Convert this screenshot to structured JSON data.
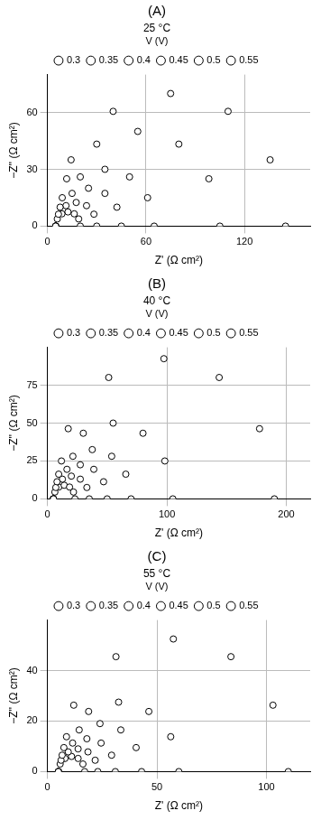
{
  "chart_data": [
    {
      "type": "scatter",
      "title": "(A)",
      "subtitle": "25 °C",
      "x_label": "Z' (Ω cm²)",
      "y_label": "−Z'' (Ω cm²)",
      "legend_title": "V (V)",
      "xlim": [
        0,
        160
      ],
      "xticks": [
        0,
        60,
        120
      ],
      "ylim": [
        0,
        80
      ],
      "yticks": [
        0,
        30,
        60
      ],
      "grid": true,
      "legend": "top",
      "color": "#000000",
      "marker": "circle",
      "series": [
        {
          "name": "0.3",
          "x": [
            5,
            14.4,
            40,
            75,
            110,
            135.6,
            145
          ],
          "values": [
            0,
            35,
            60.6,
            70,
            60.6,
            35,
            0
          ]
        },
        {
          "name": "0.35",
          "x": [
            5,
            11.7,
            30,
            55,
            80,
            98.3,
            105
          ],
          "values": [
            0,
            25,
            43.3,
            50,
            43.3,
            25,
            0
          ]
        },
        {
          "name": "0.4",
          "x": [
            5,
            9,
            20,
            35,
            50,
            61,
            65
          ],
          "values": [
            0,
            15,
            26,
            30,
            26,
            15,
            0
          ]
        },
        {
          "name": "0.45",
          "x": [
            5,
            7.7,
            15,
            25,
            35,
            42.3,
            45
          ],
          "values": [
            0,
            10,
            17.3,
            20,
            17.3,
            10,
            0
          ]
        },
        {
          "name": "0.5",
          "x": [
            5,
            6.7,
            11.3,
            17.5,
            23.8,
            28.3,
            30
          ],
          "values": [
            0,
            6.3,
            10.8,
            12.5,
            10.8,
            6.3,
            0
          ]
        },
        {
          "name": "0.55",
          "x": [
            5,
            6,
            8.8,
            12.5,
            16.3,
            19,
            20
          ],
          "values": [
            0,
            3.8,
            6.5,
            7.5,
            6.5,
            3.8,
            0
          ]
        }
      ]
    },
    {
      "type": "scatter",
      "title": "(B)",
      "subtitle": "40 °C",
      "x_label": "Z' (Ω cm²)",
      "y_label": "−Z'' (Ω cm²)",
      "legend_title": "V (V)",
      "xlim": [
        0,
        220
      ],
      "xticks": [
        0,
        100,
        200
      ],
      "ylim": [
        0,
        100
      ],
      "yticks": [
        0,
        25,
        50,
        75
      ],
      "grid": true,
      "legend": "top",
      "color": "#000000",
      "marker": "circle",
      "series": [
        {
          "name": "0.3",
          "x": [
            5,
            17.4,
            51.3,
            97.5,
            143.8,
            177.6,
            190
          ],
          "values": [
            0,
            46.3,
            80.1,
            92.5,
            80.1,
            46.3,
            0
          ]
        },
        {
          "name": "0.35",
          "x": [
            5,
            11.7,
            30,
            55,
            80,
            98.3,
            105
          ],
          "values": [
            0,
            25,
            43.3,
            50,
            43.3,
            25,
            0
          ]
        },
        {
          "name": "0.4",
          "x": [
            5,
            9.4,
            21.3,
            37.5,
            53.8,
            65.6,
            70
          ],
          "values": [
            0,
            16.3,
            28.1,
            32.5,
            28.1,
            16.3,
            0
          ]
        },
        {
          "name": "0.45",
          "x": [
            5,
            8,
            16.3,
            27.5,
            38.8,
            47,
            50
          ],
          "values": [
            0,
            11.3,
            19.5,
            22.5,
            19.5,
            11.3,
            0
          ]
        },
        {
          "name": "0.5",
          "x": [
            5,
            7,
            12.5,
            20,
            27.5,
            33,
            35
          ],
          "values": [
            0,
            7.5,
            13,
            15,
            13,
            7.5,
            0
          ]
        },
        {
          "name": "0.55",
          "x": [
            5,
            6.2,
            9.5,
            14,
            18.5,
            21.8,
            23
          ],
          "values": [
            0,
            4.5,
            7.8,
            9,
            7.8,
            4.5,
            0
          ]
        }
      ]
    },
    {
      "type": "scatter",
      "title": "(C)",
      "subtitle": "55 °C",
      "x_label": "Z' (Ω cm²)",
      "y_label": "−Z'' (Ω cm²)",
      "legend_title": "V (V)",
      "xlim": [
        0,
        120
      ],
      "xticks": [
        0,
        50,
        100
      ],
      "ylim": [
        0,
        60
      ],
      "yticks": [
        0,
        20,
        40
      ],
      "grid": true,
      "legend": "top",
      "color": "#000000",
      "marker": "circle",
      "series": [
        {
          "name": "0.3",
          "x": [
            5,
            12,
            31.3,
            57.5,
            83.8,
            103,
            110
          ],
          "values": [
            0,
            26.3,
            45.5,
            52.5,
            45.5,
            26.3,
            0
          ]
        },
        {
          "name": "0.35",
          "x": [
            5,
            8.7,
            18.8,
            32.5,
            46.3,
            56.3,
            60
          ],
          "values": [
            0,
            13.8,
            23.8,
            27.5,
            23.8,
            13.8,
            0
          ]
        },
        {
          "name": "0.4",
          "x": [
            5,
            7.5,
            14.5,
            24,
            33.5,
            40.5,
            43
          ],
          "values": [
            0,
            9.5,
            16.5,
            19,
            16.5,
            9.5,
            0
          ]
        },
        {
          "name": "0.45",
          "x": [
            5,
            6.7,
            11.5,
            18,
            24.5,
            29.3,
            31
          ],
          "values": [
            0,
            6.5,
            11.3,
            13,
            11.3,
            6.5,
            0
          ]
        },
        {
          "name": "0.5",
          "x": [
            5,
            6.2,
            9.5,
            14,
            18.5,
            21.8,
            23
          ],
          "values": [
            0,
            4.5,
            7.8,
            9,
            7.8,
            4.5,
            0
          ]
        },
        {
          "name": "0.55",
          "x": [
            5,
            5.8,
            8,
            11,
            14,
            16.2,
            17
          ],
          "values": [
            0,
            3,
            5.2,
            6,
            5.2,
            3,
            0
          ]
        }
      ]
    }
  ]
}
